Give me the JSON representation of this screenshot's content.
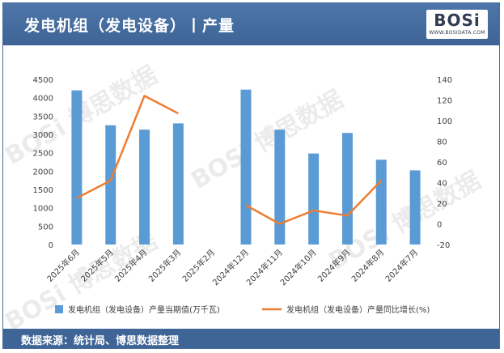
{
  "header": {
    "title": "发电机组（发电设备）丨产量",
    "logo": "BOSi",
    "logo_sub": "WWW.BOSIDATA.COM"
  },
  "footer": {
    "source": "数据来源：统计局、博思数据整理"
  },
  "colors": {
    "bar": "#5b9bd5",
    "line": "#ed7d31",
    "header": "#4a72a6"
  },
  "chart_data": {
    "type": "bar+line",
    "categories": [
      "2025年6月",
      "2025年5月",
      "2025年4月",
      "2025年3月",
      "2025年2月",
      "2024年12月",
      "2024年11月",
      "2024年10月",
      "2024年9月",
      "2024年8月",
      "2024年7月"
    ],
    "series": [
      {
        "name": "发电机组（发电设备）产量当期值(万千瓦)",
        "type": "bar",
        "axis": "left",
        "values": [
          4200,
          3250,
          3130,
          3300,
          null,
          4220,
          3130,
          2480,
          3040,
          2310,
          2020
        ]
      },
      {
        "name": "发电机组（发电设备）产量同比增长(%)",
        "type": "line",
        "axis": "right",
        "values": [
          25,
          42,
          124,
          107,
          null,
          18,
          0,
          13,
          8,
          42,
          null
        ]
      }
    ],
    "y_left": {
      "min": 0,
      "max": 4500,
      "ticks": [
        "0",
        "500",
        "1000",
        "1500",
        "2000",
        "2500",
        "3000",
        "3500",
        "4000",
        "4500"
      ]
    },
    "y_right": {
      "min": -20,
      "max": 140,
      "ticks": [
        "-20",
        "0",
        "20",
        "40",
        "60",
        "80",
        "100",
        "120",
        "140"
      ]
    },
    "grid": false,
    "legend": "bottom"
  }
}
